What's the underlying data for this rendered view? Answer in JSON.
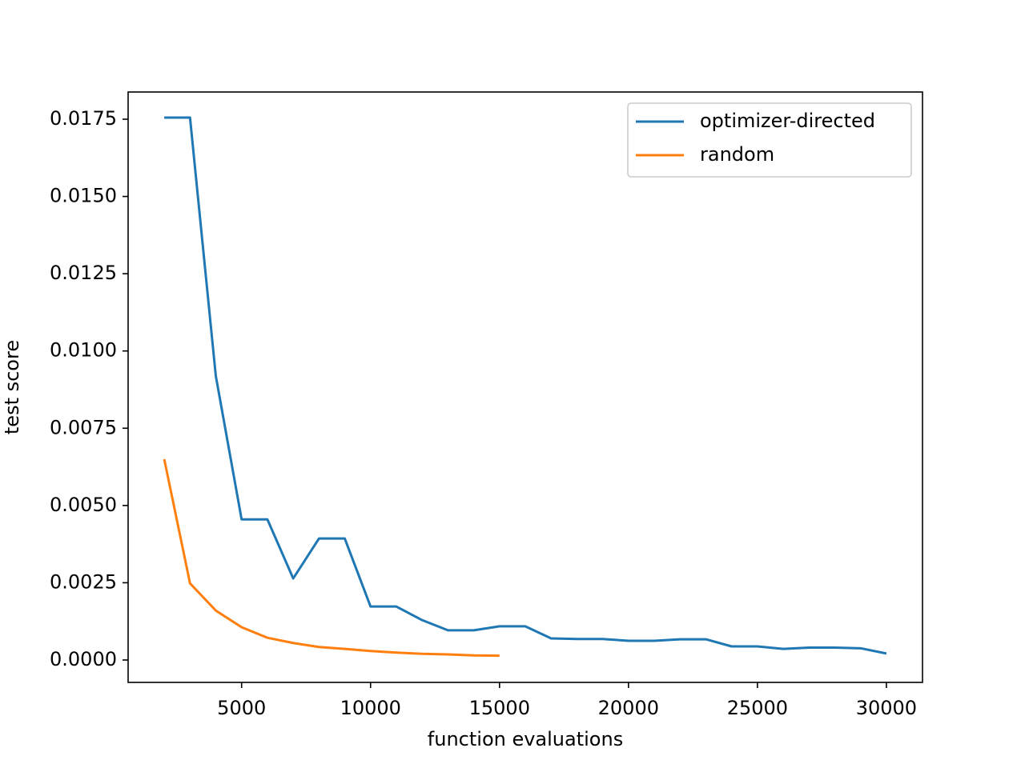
{
  "chart_data": {
    "type": "line",
    "x_label": "function evaluations",
    "y_label": "test score",
    "x": [
      2000,
      3000,
      4000,
      5000,
      6000,
      7000,
      8000,
      9000,
      10000,
      11000,
      12000,
      13000,
      14000,
      15000,
      16000,
      17000,
      18000,
      19000,
      20000,
      21000,
      22000,
      23000,
      24000,
      25000,
      26000,
      27000,
      28000,
      29000,
      30000
    ],
    "series": [
      {
        "name": "optimizer-directed",
        "color": "#1f77b4",
        "values": [
          0.01755,
          0.01755,
          0.00919,
          0.00455,
          0.00455,
          0.00264,
          0.00393,
          0.00393,
          0.00173,
          0.00173,
          0.00129,
          0.00096,
          0.00096,
          0.00109,
          0.00109,
          0.0007,
          0.00068,
          0.00068,
          0.00062,
          0.00062,
          0.00067,
          0.00067,
          0.00044,
          0.00044,
          0.00036,
          0.0004,
          0.0004,
          0.00038,
          0.00021
        ]
      },
      {
        "name": "random",
        "color": "#ff7f0e",
        "values": [
          0.0065,
          0.00248,
          0.0016,
          0.00106,
          0.00072,
          0.00055,
          0.00042,
          0.00036,
          0.00029,
          0.00024,
          0.0002,
          0.00018,
          0.00015,
          0.00014,
          null,
          null,
          null,
          null,
          null,
          null,
          null,
          null,
          null,
          null,
          null,
          null,
          null,
          null,
          null
        ]
      }
    ],
    "xlim": [
      600,
      31400
    ],
    "xticks": [
      5000,
      10000,
      15000,
      20000,
      25000,
      30000
    ],
    "ylim": [
      -0.000725,
      0.01838
    ],
    "yticks": [
      {
        "value": 0,
        "label": "0.0000"
      },
      {
        "value": 0.0025,
        "label": "0.0025"
      },
      {
        "value": 0.005,
        "label": "0.0050"
      },
      {
        "value": 0.0075,
        "label": "0.0075"
      },
      {
        "value": 0.01,
        "label": "0.0100"
      },
      {
        "value": 0.0125,
        "label": "0.0125"
      },
      {
        "value": 0.015,
        "label": "0.0150"
      },
      {
        "value": 0.0175,
        "label": "0.0175"
      }
    ],
    "legend": "upper right"
  }
}
